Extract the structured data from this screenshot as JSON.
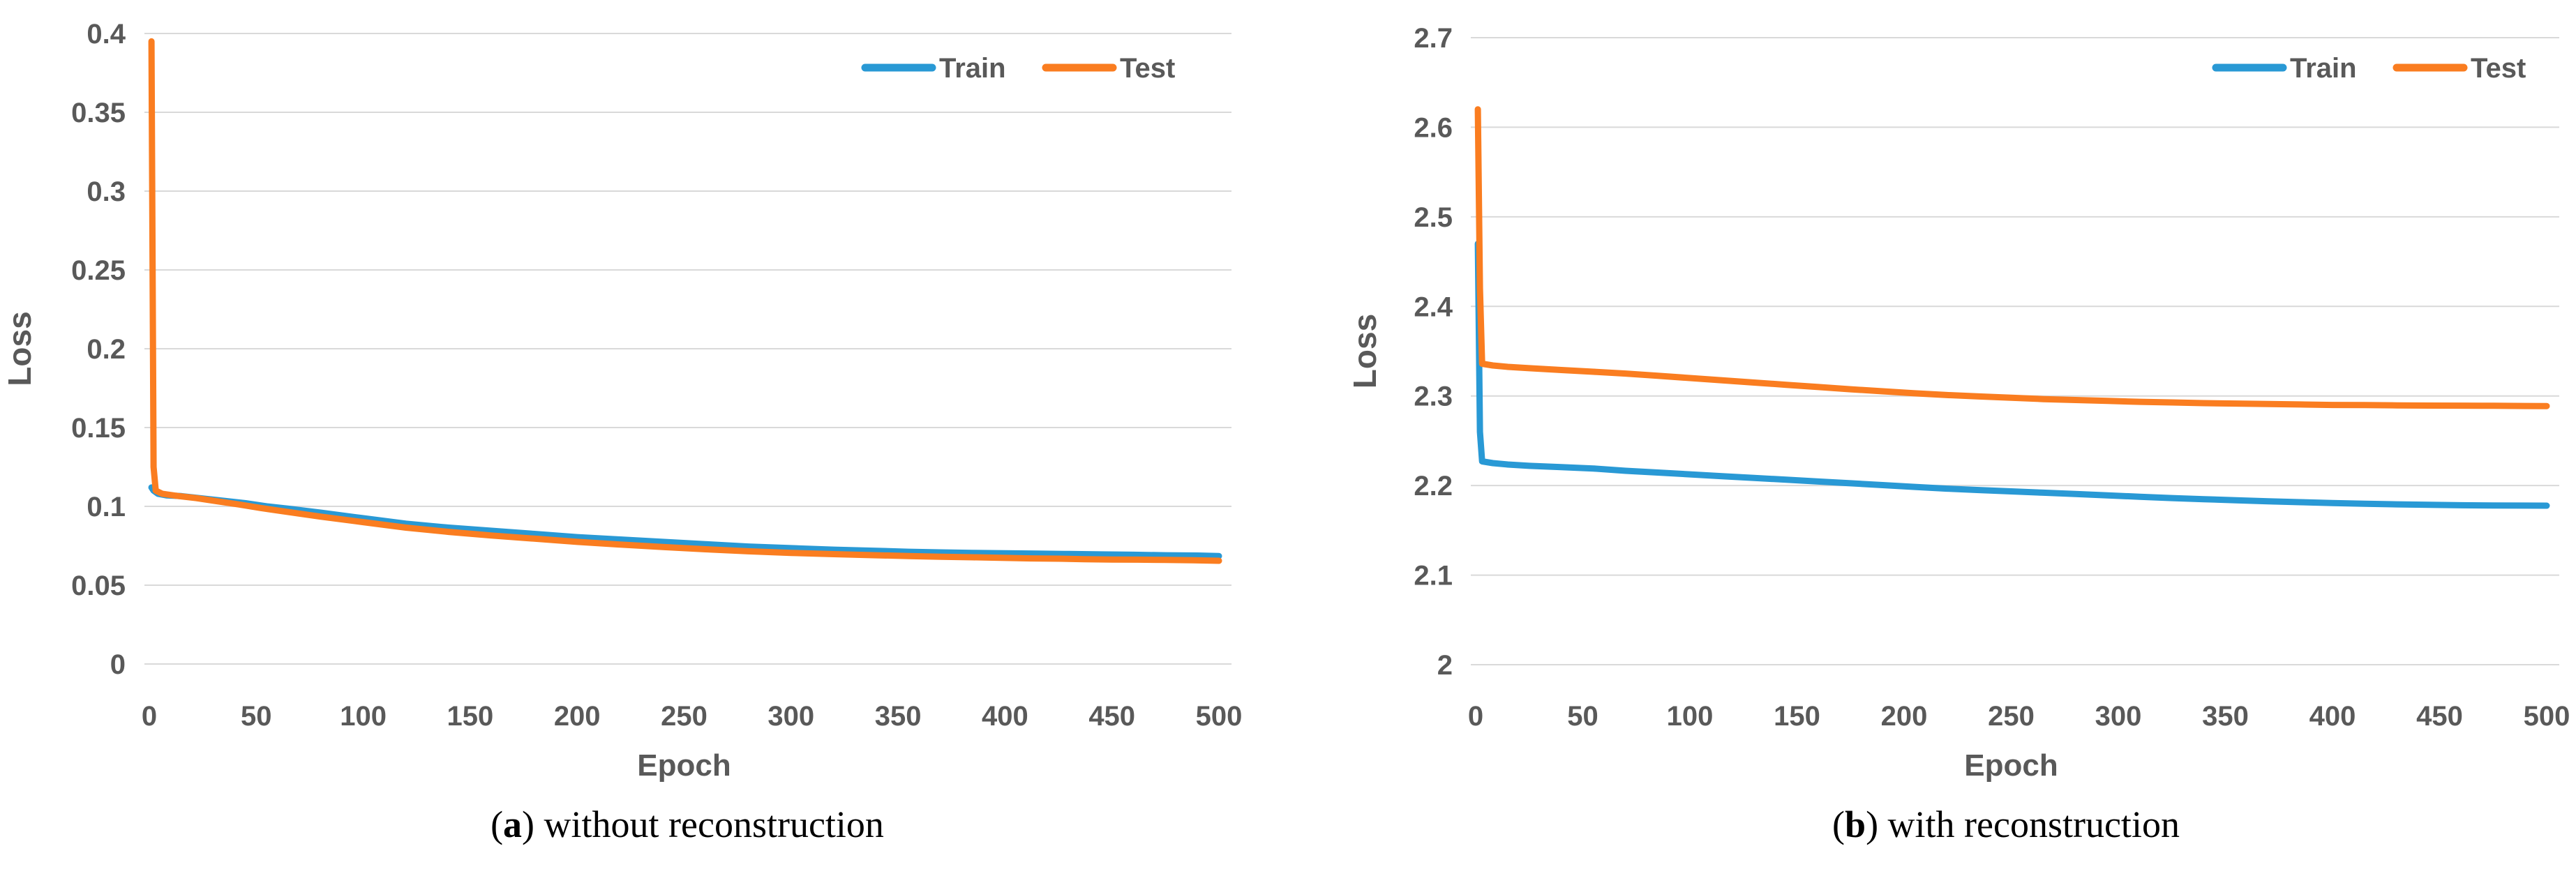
{
  "figure": {
    "background": "#ffffff",
    "text_color": "#595959",
    "grid_color": "#D9D9D9"
  },
  "chart_data": [
    {
      "type": "line",
      "title": "",
      "xlabel": "Epoch",
      "ylabel": "Loss",
      "xlim": [
        0,
        500
      ],
      "ylim": [
        0,
        0.4
      ],
      "grid": true,
      "legend_position": "top-right",
      "x_ticks": [
        "0",
        "50",
        "100",
        "150",
        "200",
        "250",
        "300",
        "350",
        "400",
        "450",
        "500"
      ],
      "y_ticks": [
        {
          "v": 0,
          "label": "0"
        },
        {
          "v": 0.05,
          "label": "0.05"
        },
        {
          "v": 0.1,
          "label": "0.1"
        },
        {
          "v": 0.15,
          "label": "0.15"
        },
        {
          "v": 0.2,
          "label": "0.2"
        },
        {
          "v": 0.25,
          "label": "0.25"
        },
        {
          "v": 0.3,
          "label": "0.3"
        },
        {
          "v": 0.35,
          "label": "0.35"
        },
        {
          "v": 0.4,
          "label": "0.4"
        }
      ],
      "series": [
        {
          "name": "Train",
          "color": "#2999D5",
          "points": [
            [
              1,
              0.112
            ],
            [
              2,
              0.11
            ],
            [
              4,
              0.108
            ],
            [
              8,
              0.107
            ],
            [
              15,
              0.1065
            ],
            [
              25,
              0.105
            ],
            [
              35,
              0.1035
            ],
            [
              45,
              0.102
            ],
            [
              55,
              0.1
            ],
            [
              65,
              0.0985
            ],
            [
              80,
              0.096
            ],
            [
              100,
              0.0925
            ],
            [
              120,
              0.089
            ],
            [
              140,
              0.0865
            ],
            [
              160,
              0.0845
            ],
            [
              180,
              0.0825
            ],
            [
              200,
              0.0805
            ],
            [
              220,
              0.079
            ],
            [
              240,
              0.0775
            ],
            [
              260,
              0.076
            ],
            [
              280,
              0.0745
            ],
            [
              300,
              0.0735
            ],
            [
              320,
              0.0725
            ],
            [
              340,
              0.0718
            ],
            [
              355,
              0.0712
            ],
            [
              370,
              0.0708
            ],
            [
              385,
              0.0705
            ],
            [
              400,
              0.0702
            ],
            [
              415,
              0.07
            ],
            [
              430,
              0.0698
            ],
            [
              445,
              0.0695
            ],
            [
              460,
              0.0693
            ],
            [
              475,
              0.069
            ],
            [
              490,
              0.0688
            ],
            [
              500,
              0.0685
            ]
          ]
        },
        {
          "name": "Test",
          "color": "#FA7D20",
          "points": [
            [
              1,
              0.395
            ],
            [
              2,
              0.125
            ],
            [
              3,
              0.11
            ],
            [
              6,
              0.108
            ],
            [
              12,
              0.1068
            ],
            [
              22,
              0.1052
            ],
            [
              32,
              0.1032
            ],
            [
              42,
              0.1012
            ],
            [
              52,
              0.099
            ],
            [
              62,
              0.097
            ],
            [
              80,
              0.0935
            ],
            [
              100,
              0.09
            ],
            [
              120,
              0.0865
            ],
            [
              140,
              0.0838
            ],
            [
              160,
              0.0815
            ],
            [
              180,
              0.0795
            ],
            [
              200,
              0.0775
            ],
            [
              220,
              0.0758
            ],
            [
              240,
              0.0742
            ],
            [
              260,
              0.0728
            ],
            [
              280,
              0.0715
            ],
            [
              300,
              0.0705
            ],
            [
              320,
              0.0697
            ],
            [
              340,
              0.069
            ],
            [
              355,
              0.0685
            ],
            [
              370,
              0.068
            ],
            [
              385,
              0.0677
            ],
            [
              400,
              0.0673
            ],
            [
              412,
              0.067
            ],
            [
              425,
              0.0668
            ],
            [
              437,
              0.0665
            ],
            [
              450,
              0.0663
            ],
            [
              462,
              0.0662
            ],
            [
              475,
              0.066
            ],
            [
              488,
              0.0658
            ],
            [
              500,
              0.0655
            ]
          ]
        }
      ],
      "caption": {
        "open": "(",
        "letter": "a",
        "close": ")",
        "text": " without reconstruction"
      }
    },
    {
      "type": "line",
      "title": "",
      "xlabel": "Epoch",
      "ylabel": "Loss",
      "xlim": [
        0,
        500
      ],
      "ylim": [
        2,
        2.7
      ],
      "grid": true,
      "legend_position": "top-right",
      "x_ticks": [
        "0",
        "50",
        "100",
        "150",
        "200",
        "250",
        "300",
        "350",
        "400",
        "450",
        "500"
      ],
      "y_ticks": [
        {
          "v": 2,
          "label": "2"
        },
        {
          "v": 2.1,
          "label": "2.1"
        },
        {
          "v": 2.2,
          "label": "2.2"
        },
        {
          "v": 2.3,
          "label": "2.3"
        },
        {
          "v": 2.4,
          "label": "2.4"
        },
        {
          "v": 2.5,
          "label": "2.5"
        },
        {
          "v": 2.6,
          "label": "2.6"
        },
        {
          "v": 2.7,
          "label": "2.7"
        }
      ],
      "series": [
        {
          "name": "Train",
          "color": "#2999D5",
          "points": [
            [
              1,
              2.47
            ],
            [
              2,
              2.26
            ],
            [
              3,
              2.227
            ],
            [
              8,
              2.225
            ],
            [
              15,
              2.2235
            ],
            [
              25,
              2.222
            ],
            [
              40,
              2.2205
            ],
            [
              55,
              2.219
            ],
            [
              70,
              2.2165
            ],
            [
              85,
              2.2145
            ],
            [
              100,
              2.2125
            ],
            [
              115,
              2.2105
            ],
            [
              130,
              2.2085
            ],
            [
              145,
              2.2065
            ],
            [
              160,
              2.2045
            ],
            [
              175,
              2.2025
            ],
            [
              190,
              2.2005
            ],
            [
              205,
              2.1985
            ],
            [
              220,
              2.1965
            ],
            [
              235,
              2.195
            ],
            [
              250,
              2.1935
            ],
            [
              265,
              2.192
            ],
            [
              280,
              2.1905
            ],
            [
              295,
              2.189
            ],
            [
              310,
              2.1875
            ],
            [
              325,
              2.186
            ],
            [
              340,
              2.1848
            ],
            [
              355,
              2.1836
            ],
            [
              370,
              2.1824
            ],
            [
              385,
              2.1814
            ],
            [
              400,
              2.1805
            ],
            [
              415,
              2.1797
            ],
            [
              430,
              2.179
            ],
            [
              445,
              2.1785
            ],
            [
              460,
              2.178
            ],
            [
              475,
              2.1778
            ],
            [
              490,
              2.1776
            ],
            [
              500,
              2.1775
            ]
          ]
        },
        {
          "name": "Test",
          "color": "#FA7D20",
          "points": [
            [
              1,
              2.62
            ],
            [
              2,
              2.42
            ],
            [
              3,
              2.336
            ],
            [
              8,
              2.334
            ],
            [
              15,
              2.3325
            ],
            [
              25,
              2.331
            ],
            [
              40,
              2.329
            ],
            [
              55,
              2.327
            ],
            [
              70,
              2.325
            ],
            [
              85,
              2.3225
            ],
            [
              100,
              2.32
            ],
            [
              115,
              2.3175
            ],
            [
              130,
              2.315
            ],
            [
              145,
              2.3125
            ],
            [
              160,
              2.31
            ],
            [
              175,
              2.3075
            ],
            [
              190,
              2.3052
            ],
            [
              205,
              2.303
            ],
            [
              220,
              2.301
            ],
            [
              235,
              2.2995
            ],
            [
              250,
              2.298
            ],
            [
              265,
              2.2965
            ],
            [
              280,
              2.2955
            ],
            [
              295,
              2.2945
            ],
            [
              310,
              2.2935
            ],
            [
              325,
              2.2928
            ],
            [
              340,
              2.292
            ],
            [
              355,
              2.2915
            ],
            [
              370,
              2.291
            ],
            [
              385,
              2.2905
            ],
            [
              400,
              2.29
            ],
            [
              415,
              2.2898
            ],
            [
              430,
              2.2895
            ],
            [
              445,
              2.2893
            ],
            [
              460,
              2.2892
            ],
            [
              475,
              2.289
            ],
            [
              490,
              2.2888
            ],
            [
              500,
              2.2887
            ]
          ]
        }
      ],
      "caption": {
        "open": "(",
        "letter": "b",
        "close": ")",
        "text": " with reconstruction"
      }
    }
  ]
}
